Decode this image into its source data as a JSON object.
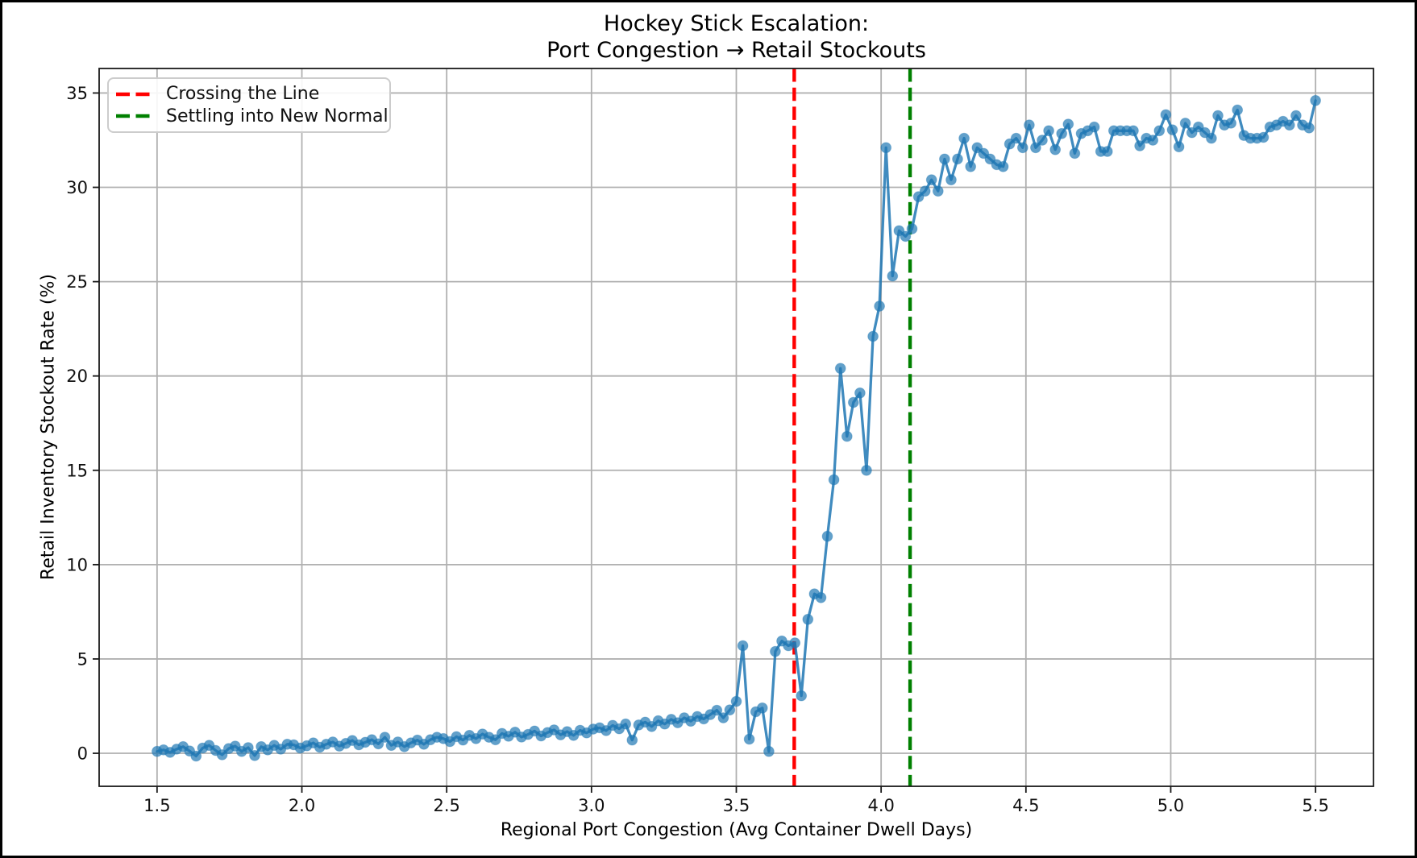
{
  "figure": {
    "title_line1": "Hockey Stick Escalation:",
    "title_line2": "Port Congestion → Retail Stockouts",
    "xlabel": "Regional Port Congestion (Avg Container Dwell Days)",
    "ylabel": "Retail Inventory Stockout Rate (%)"
  },
  "legend": {
    "entries": [
      {
        "label": "Crossing the Line",
        "color": "#ff0000"
      },
      {
        "label": "Settling into New Normal",
        "color": "#008000"
      }
    ]
  },
  "chart_data": {
    "type": "line",
    "title": "Hockey Stick Escalation: Port Congestion → Retail Stockouts",
    "xlabel": "Regional Port Congestion (Avg Container Dwell Days)",
    "ylabel": "Retail Inventory Stockout Rate (%)",
    "xlim": [
      1.3,
      5.7
    ],
    "ylim": [
      -1.75,
      36.3
    ],
    "x_ticks": [
      1.5,
      2.0,
      2.5,
      3.0,
      3.5,
      4.0,
      4.5,
      5.0,
      5.5
    ],
    "x_tick_labels": [
      "1.5",
      "2.0",
      "2.5",
      "3.0",
      "3.5",
      "4.0",
      "4.5",
      "5.0",
      "5.5"
    ],
    "y_ticks": [
      0,
      5,
      10,
      15,
      20,
      25,
      30,
      35
    ],
    "y_tick_labels": [
      "0",
      "5",
      "10",
      "15",
      "20",
      "25",
      "30",
      "35"
    ],
    "grid": true,
    "grid_color": "#b0b0b0",
    "line_color": "#1f77b4",
    "marker": "o",
    "legend_position": "upper left",
    "vlines": [
      {
        "x": 3.7,
        "color": "#ff0000",
        "style": "dashed",
        "label": "Crossing the Line"
      },
      {
        "x": 4.1,
        "color": "#008000",
        "style": "dashed",
        "label": "Settling into New Normal"
      }
    ],
    "series": [
      {
        "name": "Retail Inventory Stockout Rate (%)",
        "x_start": 1.5,
        "x_end": 5.5,
        "n": 179,
        "values": [
          0.1,
          0.18,
          0.05,
          0.22,
          0.35,
          0.12,
          -0.15,
          0.28,
          0.42,
          0.15,
          -0.08,
          0.25,
          0.38,
          0.1,
          0.3,
          -0.12,
          0.35,
          0.18,
          0.42,
          0.22,
          0.48,
          0.45,
          0.28,
          0.4,
          0.55,
          0.32,
          0.48,
          0.6,
          0.38,
          0.52,
          0.68,
          0.45,
          0.58,
          0.72,
          0.5,
          0.85,
          0.42,
          0.6,
          0.35,
          0.55,
          0.7,
          0.48,
          0.72,
          0.85,
          0.78,
          0.62,
          0.88,
          0.7,
          0.95,
          0.78,
          1.02,
          0.85,
          0.72,
          1.05,
          0.9,
          1.12,
          0.86,
          1.0,
          1.18,
          0.92,
          1.1,
          1.24,
          0.98,
          1.15,
          0.95,
          1.22,
          1.08,
          1.28,
          1.35,
          1.2,
          1.48,
          1.3,
          1.55,
          0.7,
          1.5,
          1.65,
          1.42,
          1.72,
          1.55,
          1.8,
          1.62,
          1.88,
          1.7,
          1.95,
          1.82,
          2.05,
          2.28,
          1.88,
          2.3,
          2.75,
          5.7,
          0.75,
          2.2,
          2.4,
          0.1,
          5.4,
          5.95,
          5.7,
          5.85,
          3.05,
          7.1,
          8.45,
          8.25,
          11.5,
          14.5,
          20.4,
          16.8,
          18.6,
          19.1,
          15.0,
          22.1,
          23.7,
          32.1,
          25.3,
          27.7,
          27.4,
          27.8,
          29.5,
          29.8,
          30.4,
          29.8,
          31.5,
          30.4,
          31.5,
          32.6,
          31.1,
          32.1,
          31.8,
          31.5,
          31.2,
          31.1,
          32.3,
          32.6,
          32.1,
          33.3,
          32.1,
          32.5,
          33.0,
          32.0,
          32.85,
          33.35,
          31.8,
          32.85,
          33.0,
          33.2,
          31.9,
          31.9,
          33.0,
          33.0,
          33.0,
          33.0,
          32.2,
          32.6,
          32.5,
          33.0,
          33.85,
          33.05,
          32.15,
          33.4,
          32.9,
          33.2,
          32.9,
          32.6,
          33.8,
          33.3,
          33.4,
          34.1,
          32.75,
          32.6,
          32.6,
          32.65,
          33.2,
          33.3,
          33.5,
          33.3,
          33.8,
          33.3,
          33.15,
          34.6
        ]
      }
    ]
  }
}
